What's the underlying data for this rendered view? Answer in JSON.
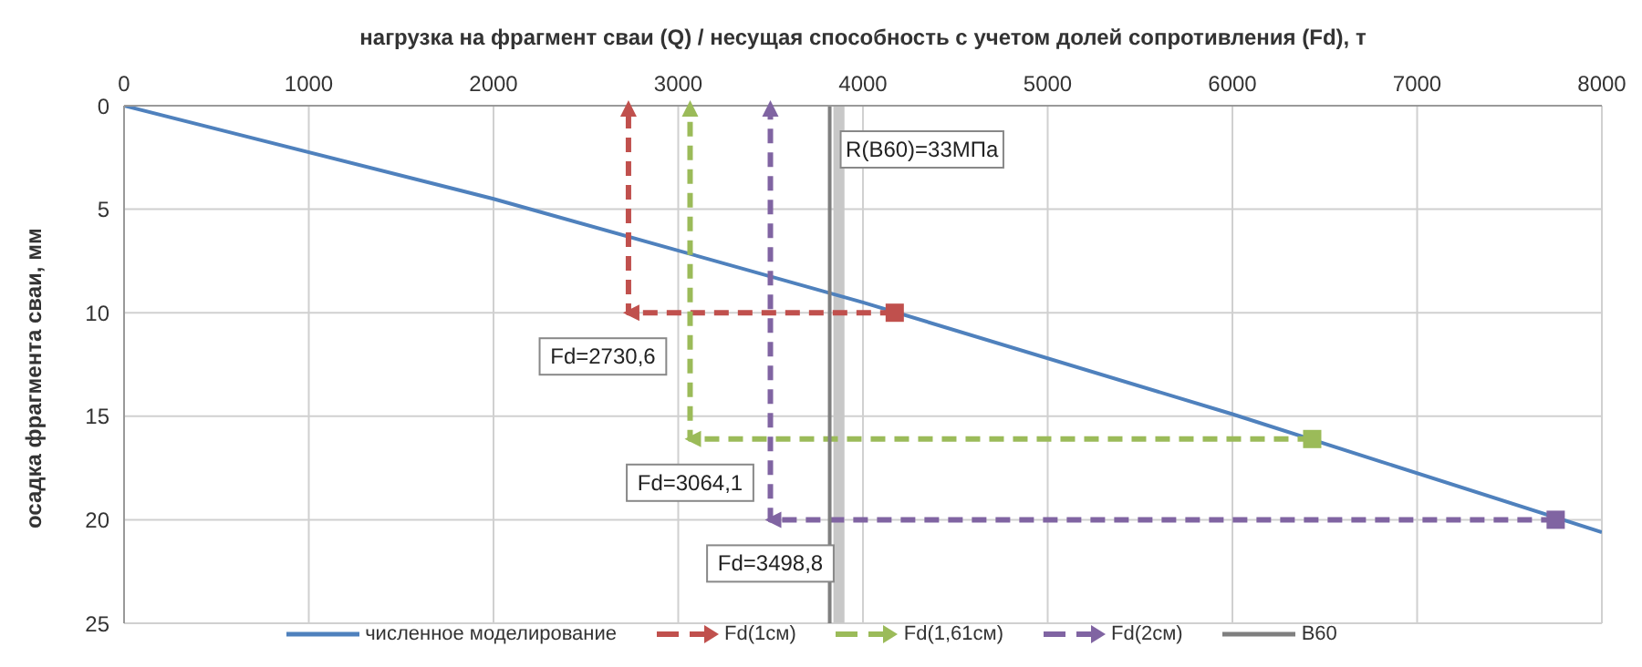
{
  "chart_data": {
    "type": "line",
    "xlabel": "нагрузка на фрагмент сваи (Q) / несущая способность  с учетом долей  сопротивления (Fd), т",
    "ylabel": "осадка фрагмента сваи, мм",
    "xlim": [
      0,
      8000
    ],
    "xticks": [
      0,
      1000,
      2000,
      3000,
      4000,
      5000,
      6000,
      7000,
      8000
    ],
    "ylim": [
      25,
      0
    ],
    "yticks": [
      0,
      5,
      10,
      15,
      20,
      25
    ],
    "grid": true,
    "legend": "bottom",
    "marker": "none",
    "series": [
      {
        "name": "численное моделирование",
        "color": "#4f81bd",
        "line_style": "solid",
        "x": [
          0,
          2000,
          4000,
          6000,
          8000
        ],
        "values": [
          0,
          4.5,
          9.5,
          14.9,
          20.6
        ]
      },
      {
        "name": "Fd(1см)",
        "color": "#c0504d",
        "line_style": "dashed",
        "marker": "triangle",
        "x": [
          4172,
          2730.6,
          2730.6
        ],
        "values": [
          10,
          10,
          0
        ]
      },
      {
        "name": "Fd(1,61см)",
        "color": "#9bbb59",
        "line_style": "dashed",
        "marker": "triangle",
        "x": [
          6432,
          3064.1,
          3064.1
        ],
        "values": [
          16.1,
          16.1,
          0
        ]
      },
      {
        "name": "Fd(2см)",
        "color": "#8064a2",
        "line_style": "dashed",
        "marker": "triangle",
        "x": [
          7750,
          3498.8,
          3498.8
        ],
        "values": [
          20,
          20,
          0
        ]
      },
      {
        "name": "B60",
        "color": "#7f7f7f",
        "line_style": "solid",
        "x": [
          3820,
          3820
        ],
        "values": [
          0,
          25
        ]
      },
      {
        "type": "scatter",
        "marker": "square",
        "color": "#c0504d",
        "x": [
          4172
        ],
        "values": [
          10
        ]
      },
      {
        "type": "scatter",
        "marker": "square",
        "color": "#9bbb59",
        "x": [
          6432
        ],
        "values": [
          16.1
        ]
      },
      {
        "type": "scatter",
        "marker": "square",
        "color": "#8064a2",
        "x": [
          7750
        ],
        "values": [
          20
        ]
      }
    ],
    "bands": [
      {
        "axis": "x",
        "from": 3840,
        "to": 3900,
        "color": "#c8c8c8"
      }
    ],
    "annotations": [
      "Fd=2730,6",
      "Fd=3064,1",
      "Fd=3498,8",
      "R(B60)=33МПа"
    ]
  }
}
